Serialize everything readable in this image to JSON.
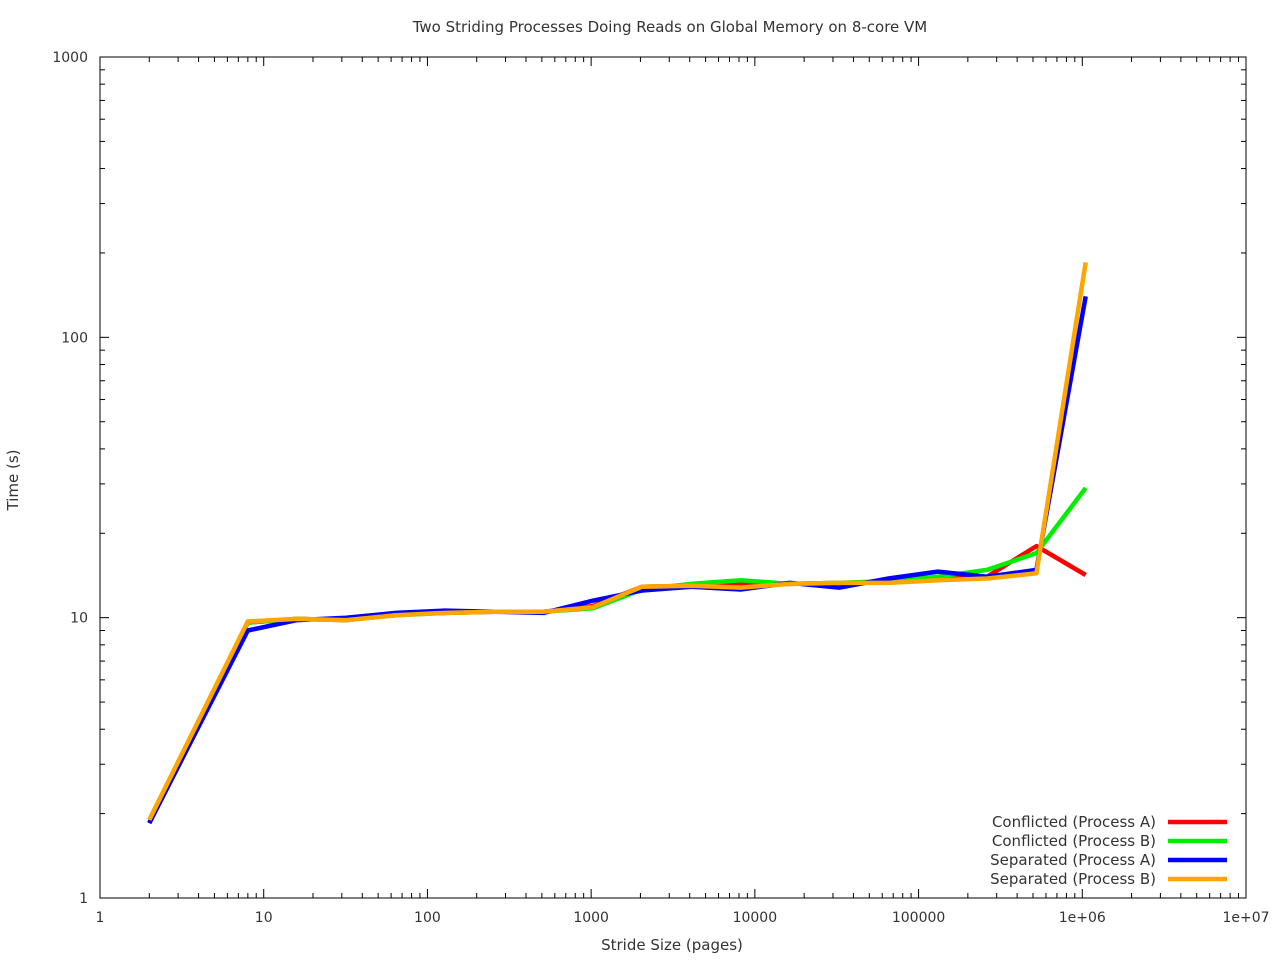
{
  "chart_data": {
    "type": "line",
    "title": "Two Striding Processes Doing Reads on Global Memory on 8-core VM",
    "xlabel": "Stride Size (pages)",
    "ylabel": "Time (s)",
    "x_scale": "log",
    "y_scale": "log",
    "xlim": [
      1,
      10000000
    ],
    "ylim": [
      1,
      1000
    ],
    "x_ticks": [
      {
        "value": 1,
        "label": "1"
      },
      {
        "value": 10,
        "label": "10"
      },
      {
        "value": 100,
        "label": "100"
      },
      {
        "value": 1000,
        "label": "1000"
      },
      {
        "value": 10000,
        "label": "10000"
      },
      {
        "value": 100000,
        "label": "100000"
      },
      {
        "value": 1000000,
        "label": "1e+06"
      },
      {
        "value": 10000000,
        "label": "1e+07"
      }
    ],
    "y_ticks": [
      {
        "value": 1,
        "label": "1"
      },
      {
        "value": 10,
        "label": "10"
      },
      {
        "value": 100,
        "label": "100"
      },
      {
        "value": 1000,
        "label": "1000"
      }
    ],
    "grid": false,
    "legend_position": "bottom-right",
    "x": [
      2,
      8,
      16,
      32,
      64,
      128,
      256,
      512,
      1024,
      2048,
      4096,
      8192,
      16384,
      32768,
      65536,
      131072,
      262144,
      524288,
      1048576
    ],
    "series": [
      {
        "name": "Conflicted (Process A)",
        "color": "#ff0000",
        "values": [
          1.85,
          9.6,
          9.9,
          9.8,
          10.3,
          10.4,
          10.5,
          10.5,
          11.0,
          12.9,
          13.0,
          13.1,
          13.2,
          13.3,
          13.4,
          13.7,
          14.0,
          18.0,
          14.2
        ]
      },
      {
        "name": "Conflicted (Process B)",
        "color": "#00ee00",
        "values": [
          1.9,
          9.6,
          9.9,
          9.8,
          10.2,
          10.4,
          10.5,
          10.5,
          10.8,
          12.6,
          13.2,
          13.6,
          13.2,
          13.3,
          13.5,
          14.0,
          14.8,
          17.0,
          29.0
        ]
      },
      {
        "name": "Separated (Process A)",
        "color": "#0000ff",
        "values": [
          1.85,
          9.0,
          9.8,
          10.0,
          10.4,
          10.6,
          10.5,
          10.4,
          11.5,
          12.5,
          12.9,
          12.6,
          13.3,
          12.8,
          13.8,
          14.6,
          14.0,
          14.8,
          140
        ]
      },
      {
        "name": "Separated (Process B)",
        "color": "#ffa500",
        "values": [
          1.9,
          9.7,
          9.9,
          9.8,
          10.2,
          10.4,
          10.5,
          10.5,
          10.9,
          12.9,
          13.0,
          12.8,
          13.2,
          13.3,
          13.3,
          13.6,
          13.8,
          14.4,
          185
        ]
      }
    ]
  }
}
